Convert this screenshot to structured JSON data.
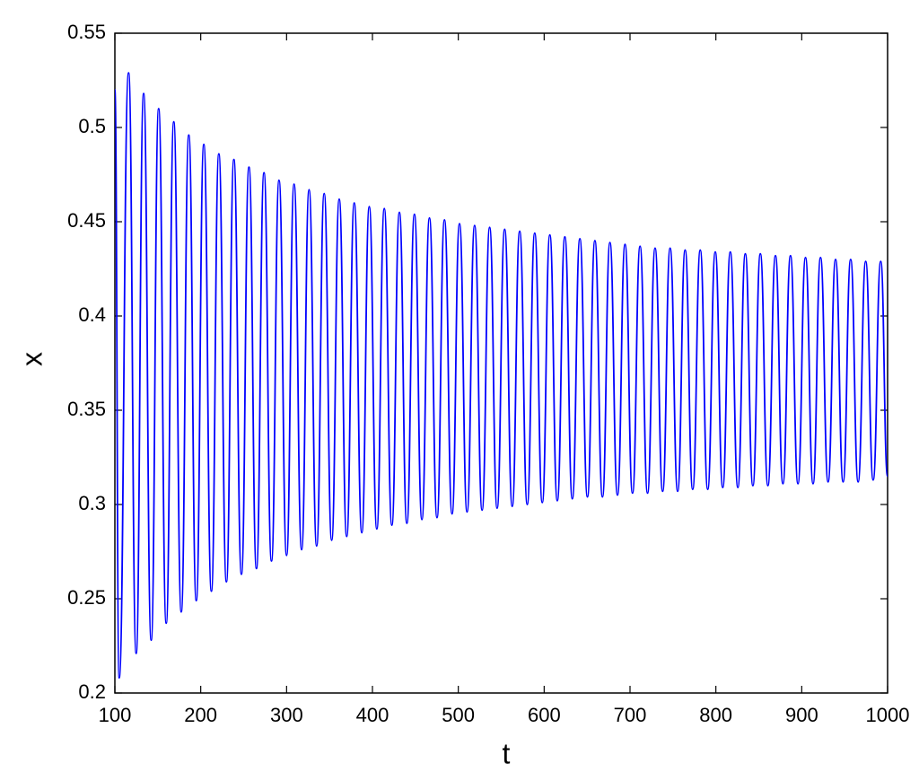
{
  "chart_data": {
    "type": "line",
    "xlabel": "t",
    "ylabel": "x",
    "color": "#0000ff",
    "xlim": [
      100,
      1000
    ],
    "ylim": [
      0.2,
      0.55
    ],
    "xticks": [
      100,
      200,
      300,
      400,
      500,
      600,
      700,
      800,
      900,
      1000
    ],
    "yticks": [
      0.2,
      0.25,
      0.3,
      0.35,
      0.4,
      0.45,
      0.5,
      0.55
    ],
    "x": [
      100,
      105,
      116.0,
      124.8,
      133.5,
      142.3,
      151.0,
      159.8,
      168.6,
      177.3,
      186.1,
      194.8,
      203.6,
      212.4,
      221.1,
      229.9,
      238.6,
      247.4,
      256.2,
      264.9,
      273.7,
      282.4,
      291.2,
      300.0,
      308.7,
      317.5,
      326.2,
      335.0,
      343.8,
      352.5,
      361.3,
      370.0,
      378.8,
      387.6,
      396.3,
      405.1,
      413.8,
      422.6,
      431.4,
      440.1,
      448.9,
      457.6,
      466.4,
      475.2,
      483.9,
      492.7,
      501.4,
      510.2,
      519.0,
      527.7,
      536.5,
      545.2,
      554.0,
      562.8,
      571.5,
      580.3,
      589.0,
      597.8,
      606.6,
      615.3,
      624.1,
      632.8,
      641.6,
      650.4,
      659.1,
      667.9,
      676.6,
      685.4,
      694.2,
      702.9,
      711.7,
      720.4,
      729.2,
      738.0,
      746.7,
      755.5,
      764.2,
      773.0,
      781.8,
      790.5,
      799.3,
      808.0,
      816.8,
      825.6,
      834.3,
      843.1,
      851.8,
      860.6,
      869.4,
      878.1,
      886.9,
      895.6,
      904.4,
      913.2,
      921.9,
      930.7,
      939.4,
      948.2,
      957.0,
      965.7,
      974.5,
      983.2,
      992.0,
      1000
    ],
    "values": [
      0.52,
      0.208,
      0.529,
      0.221,
      0.518,
      0.228,
      0.51,
      0.237,
      0.503,
      0.243,
      0.496,
      0.249,
      0.491,
      0.254,
      0.486,
      0.259,
      0.483,
      0.263,
      0.479,
      0.266,
      0.476,
      0.27,
      0.472,
      0.273,
      0.47,
      0.276,
      0.467,
      0.278,
      0.465,
      0.281,
      0.462,
      0.283,
      0.46,
      0.285,
      0.458,
      0.287,
      0.457,
      0.289,
      0.455,
      0.29,
      0.454,
      0.292,
      0.452,
      0.293,
      0.451,
      0.295,
      0.449,
      0.296,
      0.448,
      0.297,
      0.447,
      0.298,
      0.446,
      0.299,
      0.445,
      0.3,
      0.444,
      0.301,
      0.443,
      0.302,
      0.442,
      0.303,
      0.441,
      0.304,
      0.44,
      0.304,
      0.439,
      0.305,
      0.438,
      0.306,
      0.437,
      0.306,
      0.436,
      0.307,
      0.436,
      0.307,
      0.435,
      0.308,
      0.435,
      0.308,
      0.434,
      0.309,
      0.434,
      0.309,
      0.433,
      0.31,
      0.433,
      0.31,
      0.432,
      0.311,
      0.432,
      0.311,
      0.431,
      0.311,
      0.431,
      0.312,
      0.43,
      0.312,
      0.43,
      0.312,
      0.429,
      0.313,
      0.429,
      0.315
    ]
  }
}
